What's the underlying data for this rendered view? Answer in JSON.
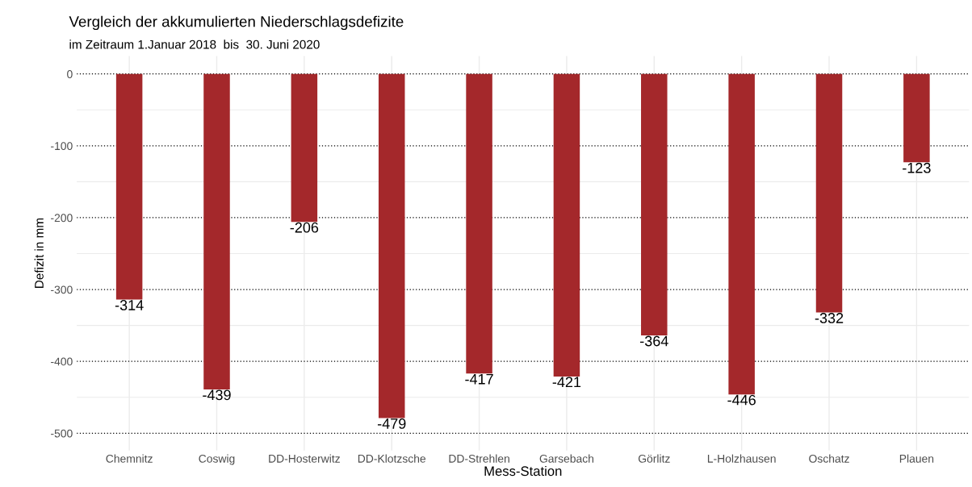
{
  "chart_data": {
    "type": "bar",
    "title": "Vergleich der akkumulierten Niederschlagsdefizite",
    "subtitle": "im Zeitraum 1.Januar 2018  bis  30. Juni 2020",
    "xlabel": "Mess-Station",
    "ylabel": "Defizit in mm",
    "categories": [
      "Chemnitz",
      "Coswig",
      "DD-Hosterwitz",
      "DD-Klotzsche",
      "DD-Strehlen",
      "Garsebach",
      "Görlitz",
      "L-Holzhausen",
      "Oschatz",
      "Plauen"
    ],
    "values": [
      -314,
      -439,
      -206,
      -479,
      -417,
      -421,
      -364,
      -446,
      -332,
      -123
    ],
    "color": "#a4282b",
    "data_labels": true,
    "ylim": [
      -524,
      25
    ],
    "yticks": [
      -500,
      -400,
      -300,
      -200,
      -100,
      0
    ],
    "grid": true
  }
}
